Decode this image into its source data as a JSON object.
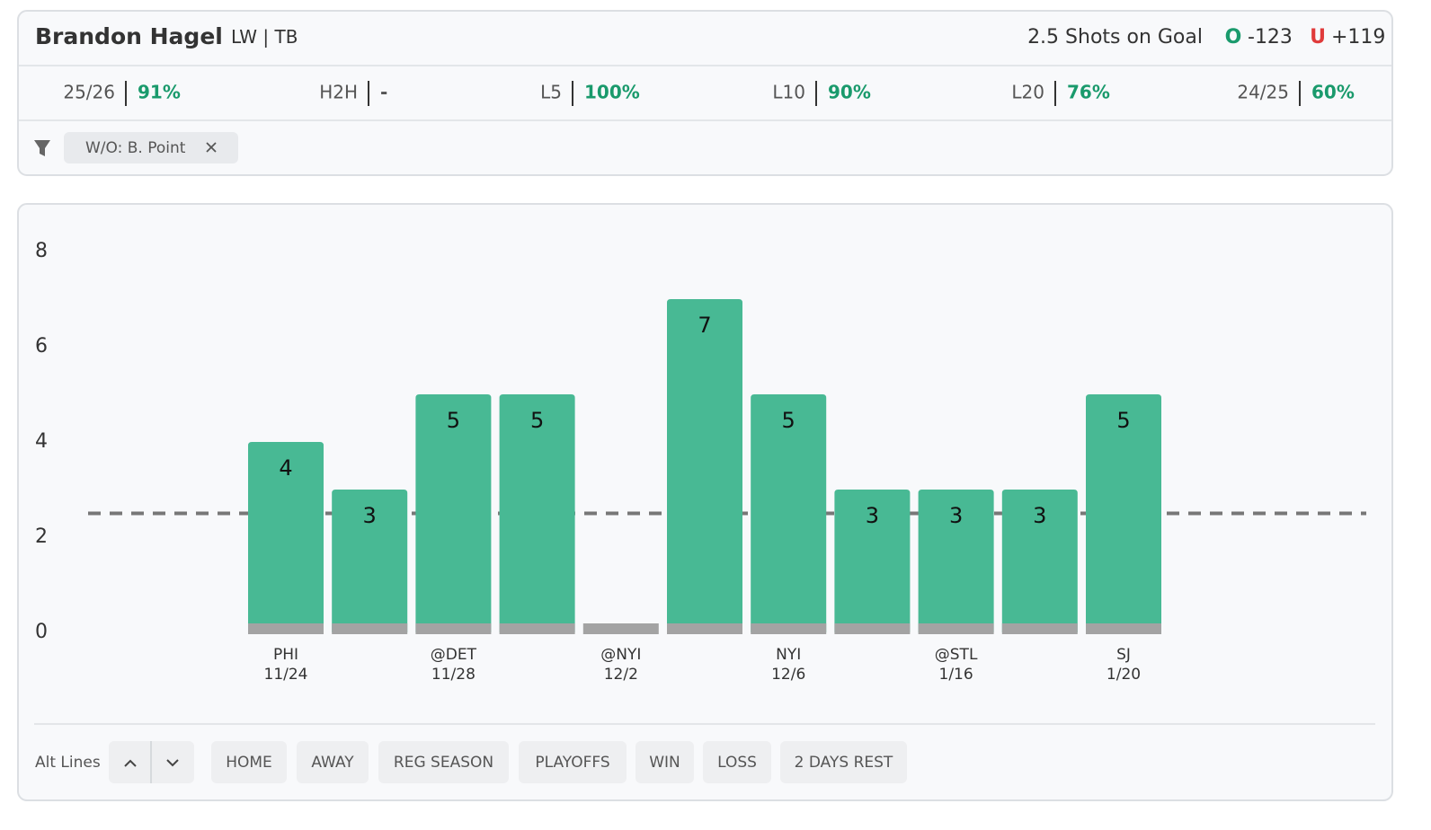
{
  "header": {
    "name": "Brandon Hagel",
    "position": "LW | TB",
    "prop": "2.5 Shots on Goal",
    "over_label": "O",
    "over_odds": "-123",
    "under_label": "U",
    "under_odds": "+119"
  },
  "stats": [
    {
      "label": "25/26",
      "value": "91%"
    },
    {
      "label": "H2H",
      "value": "-"
    },
    {
      "label": "L5",
      "value": "100%"
    },
    {
      "label": "L10",
      "value": "90%"
    },
    {
      "label": "L20",
      "value": "76%"
    },
    {
      "label": "24/25",
      "value": "60%"
    }
  ],
  "filter": {
    "chip": "W/O: B. Point"
  },
  "chart_data": {
    "type": "bar",
    "categories": [
      "PHI",
      null,
      "@DET",
      null,
      "@NYI",
      null,
      "NYI",
      null,
      "@STL",
      null,
      "SJ"
    ],
    "category_dates": [
      "11/24",
      null,
      "11/28",
      null,
      "12/2",
      null,
      "12/6",
      null,
      "1/16",
      null,
      "1/20"
    ],
    "values": [
      4,
      3,
      5,
      5,
      0,
      7,
      5,
      3,
      3,
      3,
      5
    ],
    "color": "#48b994",
    "ylim": [
      0,
      8
    ],
    "yticks": [
      0,
      2,
      4,
      6,
      8
    ],
    "threshold": 2.5
  },
  "controls": {
    "alt_lines": "Alt Lines",
    "buttons": [
      "HOME",
      "AWAY",
      "REG SEASON",
      "PLAYOFFS",
      "WIN",
      "LOSS",
      "2 DAYS REST"
    ]
  }
}
